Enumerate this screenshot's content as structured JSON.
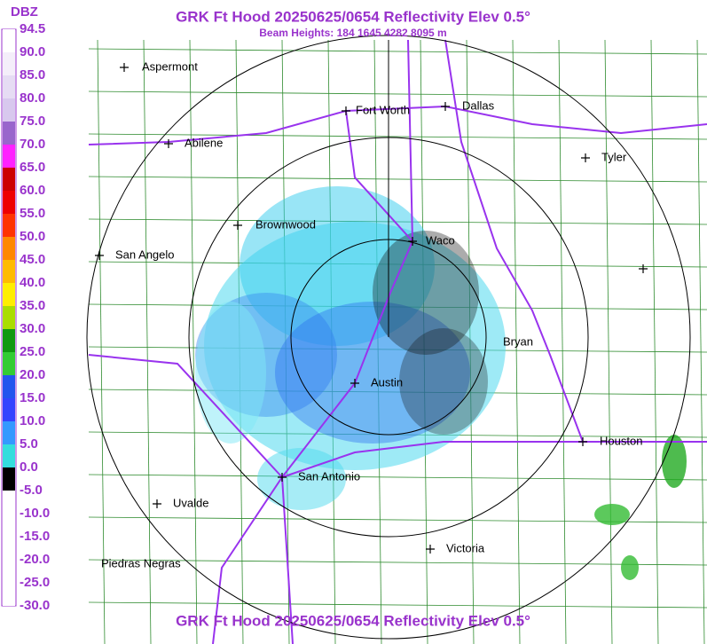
{
  "header": {
    "title": "GRK Ft Hood 20250625/0654 Reflectivity Elev 0.5°",
    "subtitle": "Beam Heights: 184 1645 4282 8095 m"
  },
  "legend": {
    "unit": "DBZ",
    "labels": [
      "94.5",
      "90.0",
      "85.0",
      "80.0",
      "75.0",
      "70.0",
      "65.0",
      "60.0",
      "55.0",
      "50.0",
      "45.0",
      "40.0",
      "35.0",
      "30.0",
      "25.0",
      "20.0",
      "15.0",
      "10.0",
      "5.0",
      "0.0",
      "-5.0",
      "-10.0",
      "-15.0",
      "-20.0",
      "-25.0",
      "-30.0"
    ]
  },
  "cities": [
    "Aspermont",
    "Fort Worth",
    "Dallas",
    "Abilene",
    "Tyler",
    "Brownwood",
    "Waco",
    "San Angelo",
    "Bryan",
    "Austin",
    "Houston",
    "San Antonio",
    "Uvalde",
    "Victoria",
    "Piedras Negras"
  ],
  "footer": {
    "title": "GRK Ft Hood 20250625/0654 Reflectivity Elev 0.5°"
  }
}
